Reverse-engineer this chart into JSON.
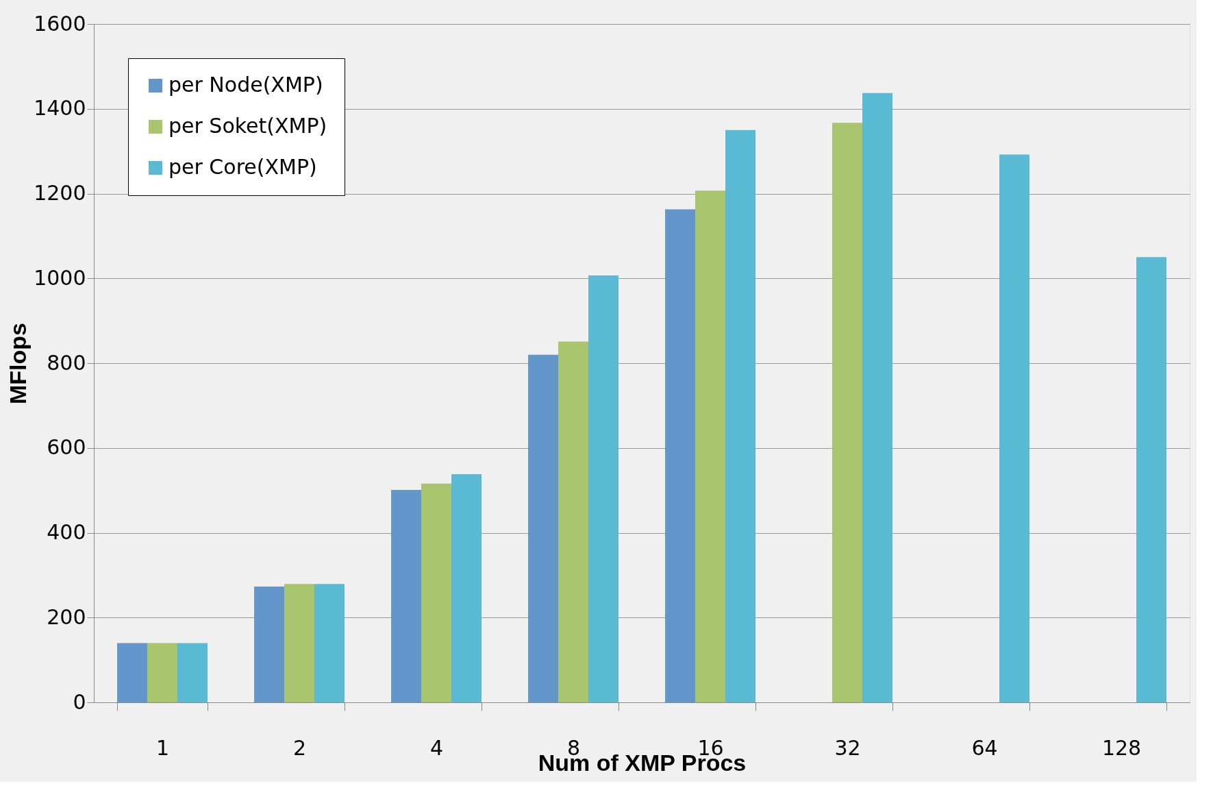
{
  "chart_data": {
    "type": "bar",
    "xlabel": "Num of XMP Procs",
    "ylabel": "MFlops",
    "categories": [
      "1",
      "2",
      "4",
      "8",
      "16",
      "32",
      "64",
      "128"
    ],
    "series": [
      {
        "name": "per Node(XMP)",
        "color": "#6396cb",
        "values": [
          140,
          273,
          501,
          820,
          1163,
          null,
          null,
          null
        ]
      },
      {
        "name": "per Soket(XMP)",
        "color": "#a8c46c",
        "values": [
          140,
          279,
          516,
          851,
          1207,
          1367,
          null,
          null
        ]
      },
      {
        "name": "per Core(XMP)",
        "color": "#5bbad3",
        "values": [
          140,
          279,
          538,
          1007,
          1350,
          1437,
          1292,
          1050
        ]
      }
    ],
    "ylim": [
      0,
      1600
    ],
    "yticks": [
      0,
      200,
      400,
      600,
      800,
      1000,
      1200,
      1400,
      1600
    ],
    "grid": "y",
    "legend": "top left"
  }
}
